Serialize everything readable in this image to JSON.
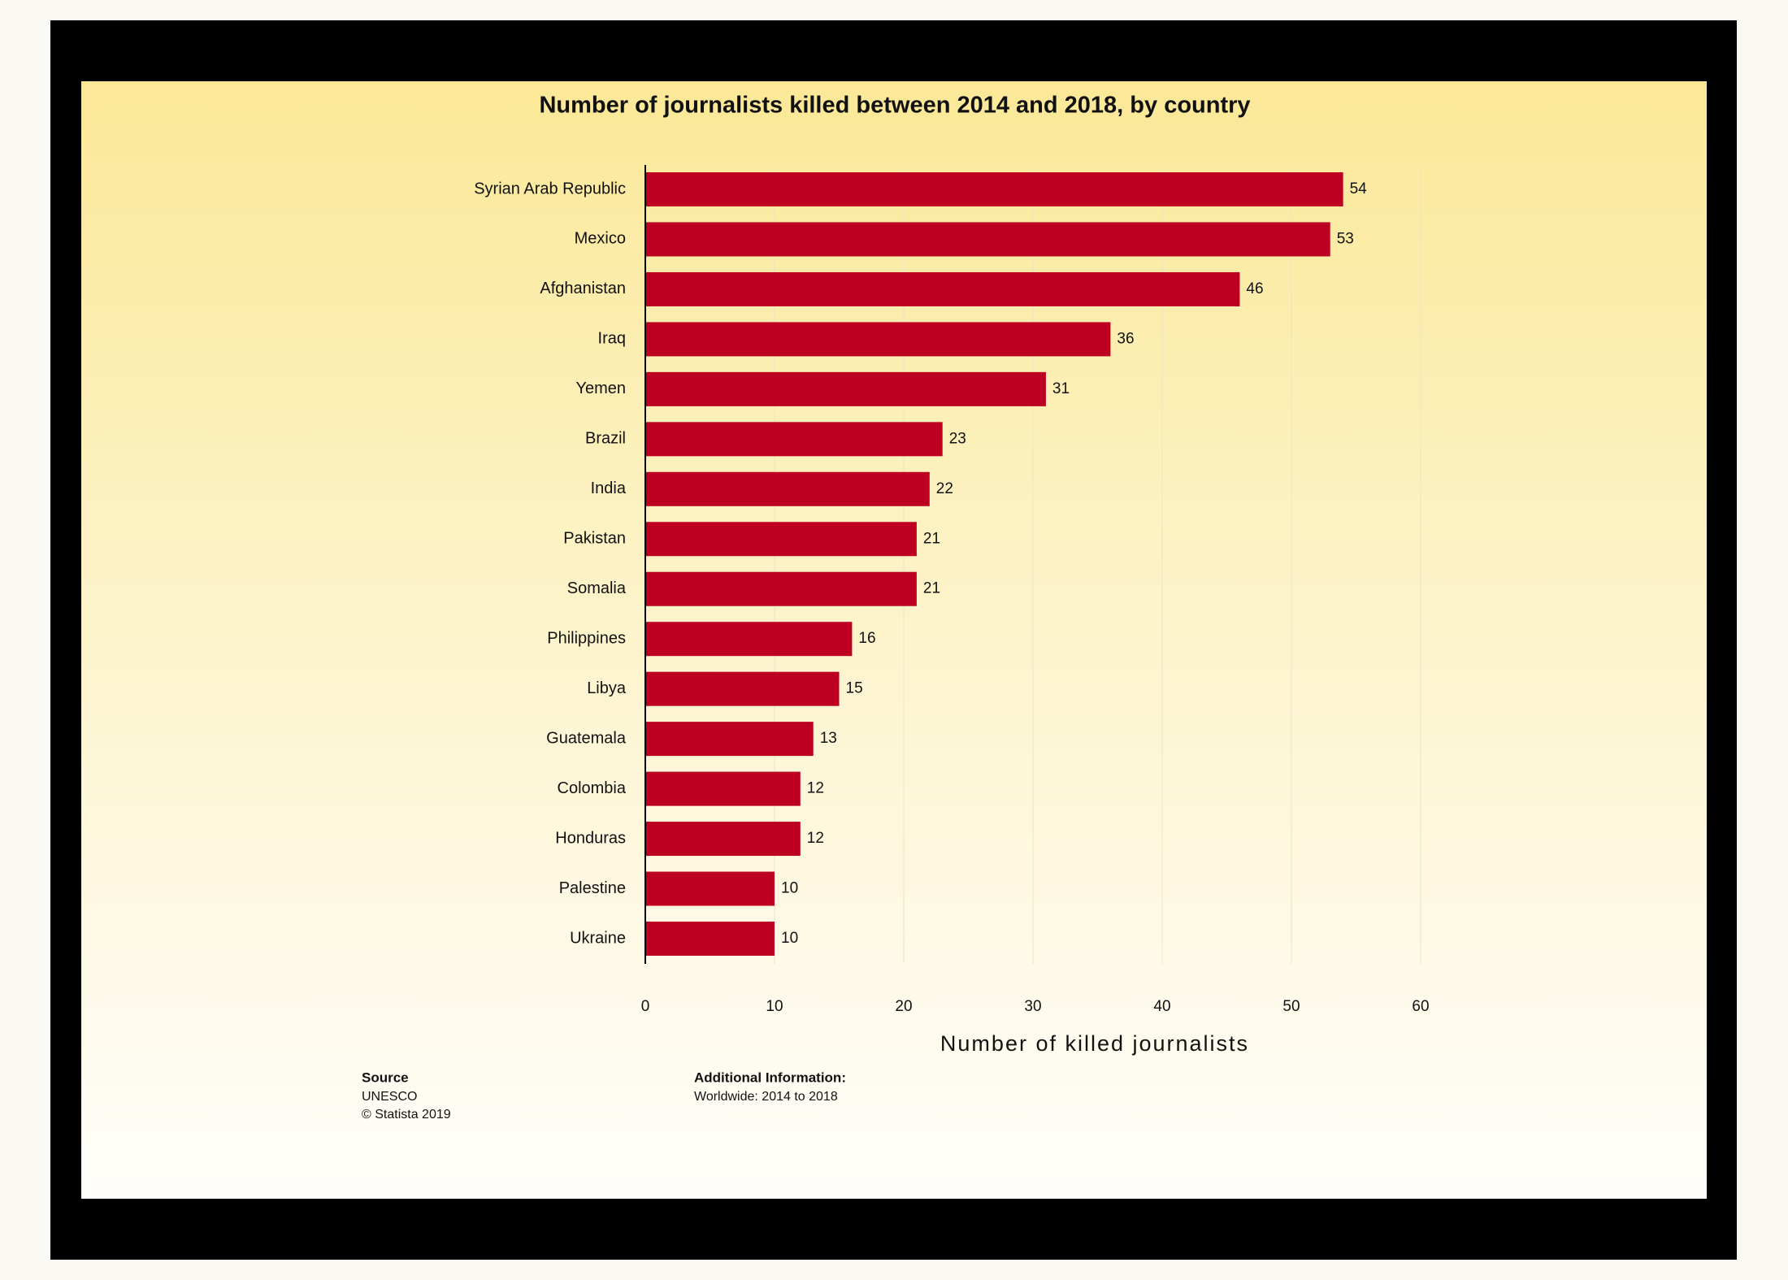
{
  "chart_data": {
    "type": "bar",
    "orientation": "horizontal",
    "title": "Number of journalists killed between 2014 and 2018, by country",
    "categories": [
      "Syrian Arab Republic",
      "Mexico",
      "Afghanistan",
      "Iraq",
      "Yemen",
      "Brazil",
      "India",
      "Pakistan",
      "Somalia",
      "Philippines",
      "Libya",
      "Guatemala",
      "Colombia",
      "Honduras",
      "Palestine",
      "Ukraine"
    ],
    "values": [
      54,
      53,
      46,
      36,
      31,
      23,
      22,
      21,
      21,
      16,
      15,
      13,
      12,
      12,
      10,
      10
    ],
    "color": "#bd0022",
    "xlim": [
      0,
      60
    ],
    "xticks": [
      0,
      10,
      20,
      30,
      40,
      50,
      60
    ],
    "xlabel": "Number of killed journalists",
    "grid": true
  },
  "footer": {
    "source_label": "Source",
    "source": "UNESCO",
    "copyright": "© Statista 2019",
    "additional_label": "Additional Information:",
    "additional_text": "Worldwide: 2014 to 2018"
  }
}
